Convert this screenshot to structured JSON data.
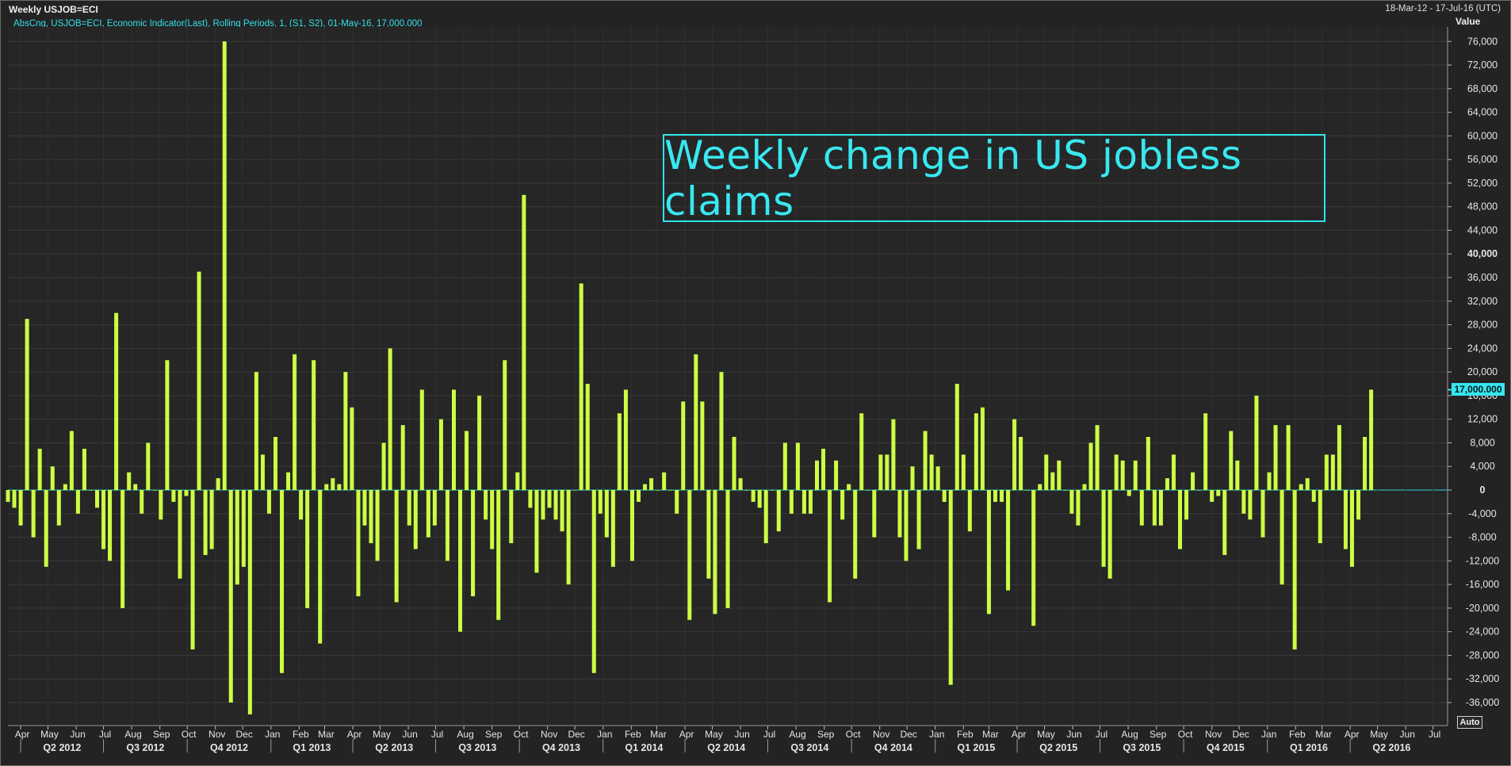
{
  "window": {
    "title": "Weekly USJOB=ECI",
    "date_range": "18-Mar-12 - 17-Jul-16 (UTC)",
    "series_desc": "AbsCng, USJOB=ECI, Economic Indicator(Last), Rolling Periods, 1, (S1, S2), 01-May-16, 17,000.000",
    "auto_label": "Auto",
    "last_value_badge": "17,000.000"
  },
  "colors": {
    "bar": "#ccff44",
    "accent": "#35e0e8",
    "background": "#232323",
    "grid": "#3a3a3a"
  },
  "chart_data": {
    "type": "bar",
    "title": "Weekly change in US jobless claims",
    "ylabel": "Value",
    "ylim": [
      -40000,
      78000
    ],
    "grid": true,
    "y_ticks": [
      76000,
      72000,
      68000,
      64000,
      60000,
      56000,
      52000,
      48000,
      44000,
      40000,
      36000,
      32000,
      28000,
      24000,
      20000,
      16000,
      12000,
      8000,
      4000,
      0,
      -4000,
      -8000,
      -12000,
      -16000,
      -20000,
      -24000,
      -28000,
      -32000,
      -36000
    ],
    "y_tick_labels": [
      "76,000",
      "72,000",
      "68,000",
      "64,000",
      "60,000",
      "56,000",
      "52,000",
      "48,000",
      "44,000",
      "40,000",
      "36,000",
      "32,000",
      "28,000",
      "24,000",
      "20,000",
      "16,000",
      "12,000",
      "8,000",
      "4,000",
      "0",
      "-4,000",
      "-8,000",
      "-12,000",
      "-16,000",
      "-20,000",
      "-24,000",
      "-28,000",
      "-32,000",
      "-36,000"
    ],
    "month_labels": [
      "Apr",
      "May",
      "Jun",
      "Jul",
      "Aug",
      "Sep",
      "Oct",
      "Nov",
      "Dec",
      "Jan",
      "Feb",
      "Mar",
      "Apr",
      "May",
      "Jun",
      "Jul",
      "Aug",
      "Sep",
      "Oct",
      "Nov",
      "Dec",
      "Jan",
      "Feb",
      "Mar",
      "Apr",
      "May",
      "Jun",
      "Jul",
      "Aug",
      "Sep",
      "Oct",
      "Nov",
      "Dec",
      "Jan",
      "Feb",
      "Mar",
      "Apr",
      "May",
      "Jun",
      "Jul",
      "Aug",
      "Sep",
      "Oct",
      "Nov",
      "Dec",
      "Jan",
      "Feb",
      "Mar",
      "Apr",
      "May",
      "Jun",
      "Jul"
    ],
    "quarter_labels": [
      "Q2 2012",
      "Q3 2012",
      "Q4 2012",
      "Q1 2013",
      "Q2 2013",
      "Q3 2013",
      "Q4 2013",
      "Q1 2014",
      "Q2 2014",
      "Q3 2014",
      "Q4 2014",
      "Q1 2015",
      "Q2 2015",
      "Q3 2015",
      "Q4 2015",
      "Q1 2016",
      "Q2 2016"
    ],
    "x_start": "2012-03-18",
    "x_end": "2016-07-17",
    "first_week": "2012-03-18",
    "week_step_days": 7,
    "values": [
      -2000,
      -3000,
      -6000,
      29000,
      -8000,
      7000,
      -13000,
      4000,
      -6000,
      1000,
      10000,
      -4000,
      7000,
      0,
      -3000,
      -10000,
      -12000,
      30000,
      -20000,
      3000,
      1000,
      -4000,
      8000,
      0,
      -5000,
      22000,
      -2000,
      -15000,
      -1000,
      -27000,
      37000,
      -11000,
      -10000,
      2000,
      76000,
      -36000,
      -16000,
      -13000,
      -38000,
      20000,
      6000,
      -4000,
      9000,
      -31000,
      3000,
      23000,
      -5000,
      -20000,
      22000,
      -26000,
      1000,
      2000,
      1000,
      20000,
      14000,
      -18000,
      -6000,
      -9000,
      -12000,
      8000,
      24000,
      -19000,
      11000,
      -6000,
      -10000,
      17000,
      -8000,
      -6000,
      12000,
      -12000,
      17000,
      -24000,
      10000,
      -18000,
      16000,
      -5000,
      -10000,
      -22000,
      22000,
      -9000,
      3000,
      50000,
      -3000,
      -14000,
      -5000,
      -3000,
      -5000,
      -7000,
      -16000,
      0,
      35000,
      18000,
      -31000,
      -4000,
      -8000,
      -13000,
      13000,
      17000,
      -12000,
      -2000,
      1000,
      2000,
      0,
      3000,
      0,
      -4000,
      15000,
      -22000,
      23000,
      15000,
      -15000,
      -21000,
      20000,
      -20000,
      9000,
      2000,
      0,
      -2000,
      -3000,
      -9000,
      0,
      -7000,
      8000,
      -4000,
      8000,
      -4000,
      -4000,
      5000,
      7000,
      -19000,
      5000,
      -5000,
      1000,
      -15000,
      13000,
      0,
      -8000,
      6000,
      6000,
      12000,
      -8000,
      -12000,
      4000,
      -10000,
      10000,
      6000,
      4000,
      -2000,
      -33000,
      18000,
      6000,
      -7000,
      13000,
      14000,
      -21000,
      -2000,
      -2000,
      -17000,
      12000,
      9000,
      0,
      -23000,
      1000,
      6000,
      3000,
      5000,
      0,
      -4000,
      -6000,
      1000,
      8000,
      11000,
      -13000,
      -15000,
      6000,
      5000,
      -1000,
      5000,
      -6000,
      9000,
      -6000,
      -6000,
      2000,
      6000,
      -10000,
      -5000,
      3000,
      0,
      13000,
      -2000,
      -1000,
      -11000,
      10000,
      5000,
      -4000,
      -5000,
      16000,
      -8000,
      3000,
      11000,
      -16000,
      11000,
      -27000,
      1000,
      2000,
      -2000,
      -9000,
      6000,
      6000,
      11000,
      -10000,
      -13000,
      -5000,
      9000,
      17000
    ]
  }
}
